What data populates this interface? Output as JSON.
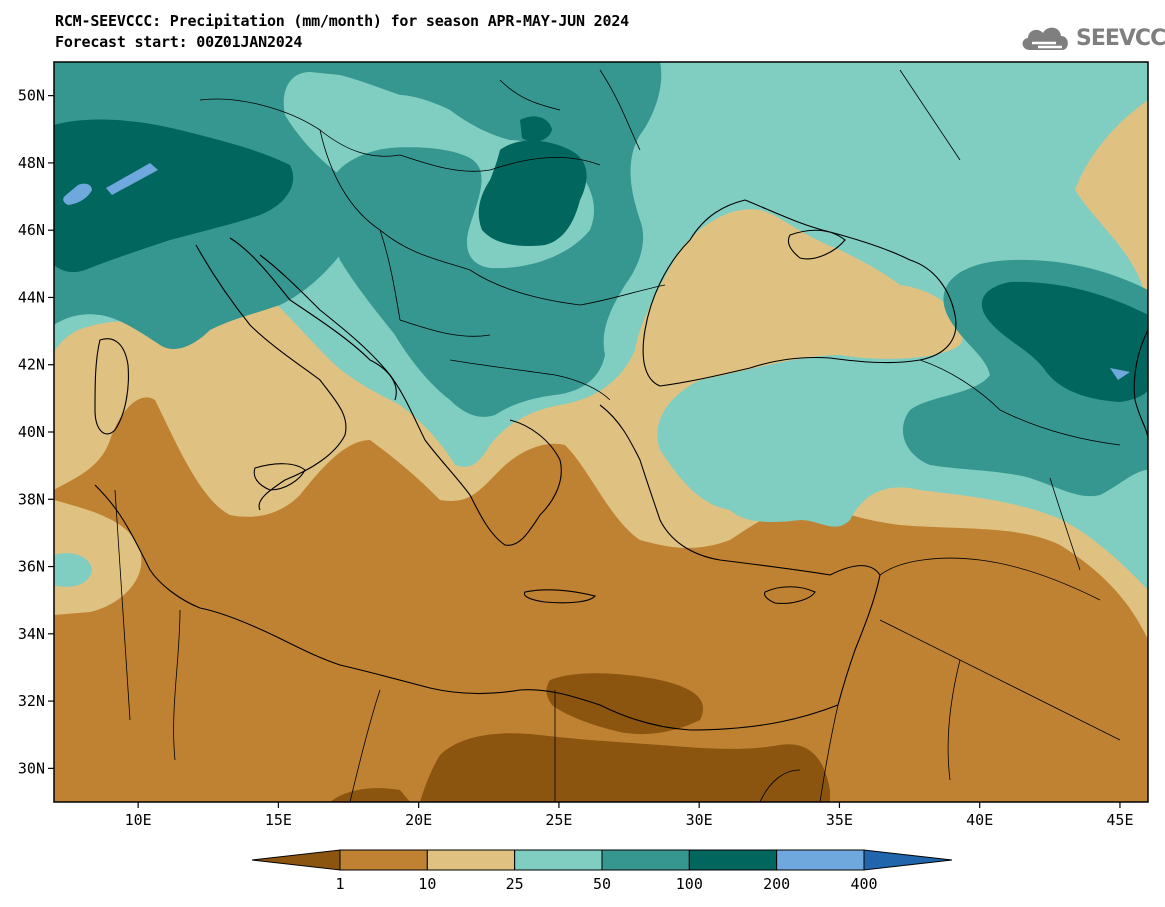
{
  "header": {
    "title_line1": "RCM-SEEVCCC: Precipitation (mm/month) for season APR-MAY-JUN 2024",
    "title_line2": "Forecast start: 00Z01JAN2024"
  },
  "logo": {
    "text": "SEEVCCC",
    "icon": "cloud-icon",
    "color": "#7f7f7f"
  },
  "map": {
    "lat_labels": [
      "50N",
      "48N",
      "46N",
      "44N",
      "42N",
      "40N",
      "38N",
      "36N",
      "34N",
      "32N",
      "30N"
    ],
    "lon_labels": [
      "10E",
      "15E",
      "20E",
      "25E",
      "30E",
      "35E",
      "40E",
      "45E"
    ],
    "lon_range": [
      7,
      46
    ],
    "lat_range": [
      29,
      51
    ],
    "colors": {
      "lt1": "#8B5510",
      "c1_10": "#BF8232",
      "c10_25": "#DFC281",
      "c25_50": "#80CDC1",
      "c50_100": "#35978F",
      "c100_200": "#01665E",
      "c200_400": "#6FA8DC",
      "gt400": "#2166AC"
    }
  },
  "colorbar": {
    "labels": [
      "1",
      "10",
      "25",
      "50",
      "100",
      "200",
      "400"
    ],
    "colors": [
      "#8B5510",
      "#BF8232",
      "#DFC281",
      "#80CDC1",
      "#35978F",
      "#01665E",
      "#6FA8DC",
      "#2166AC"
    ]
  }
}
